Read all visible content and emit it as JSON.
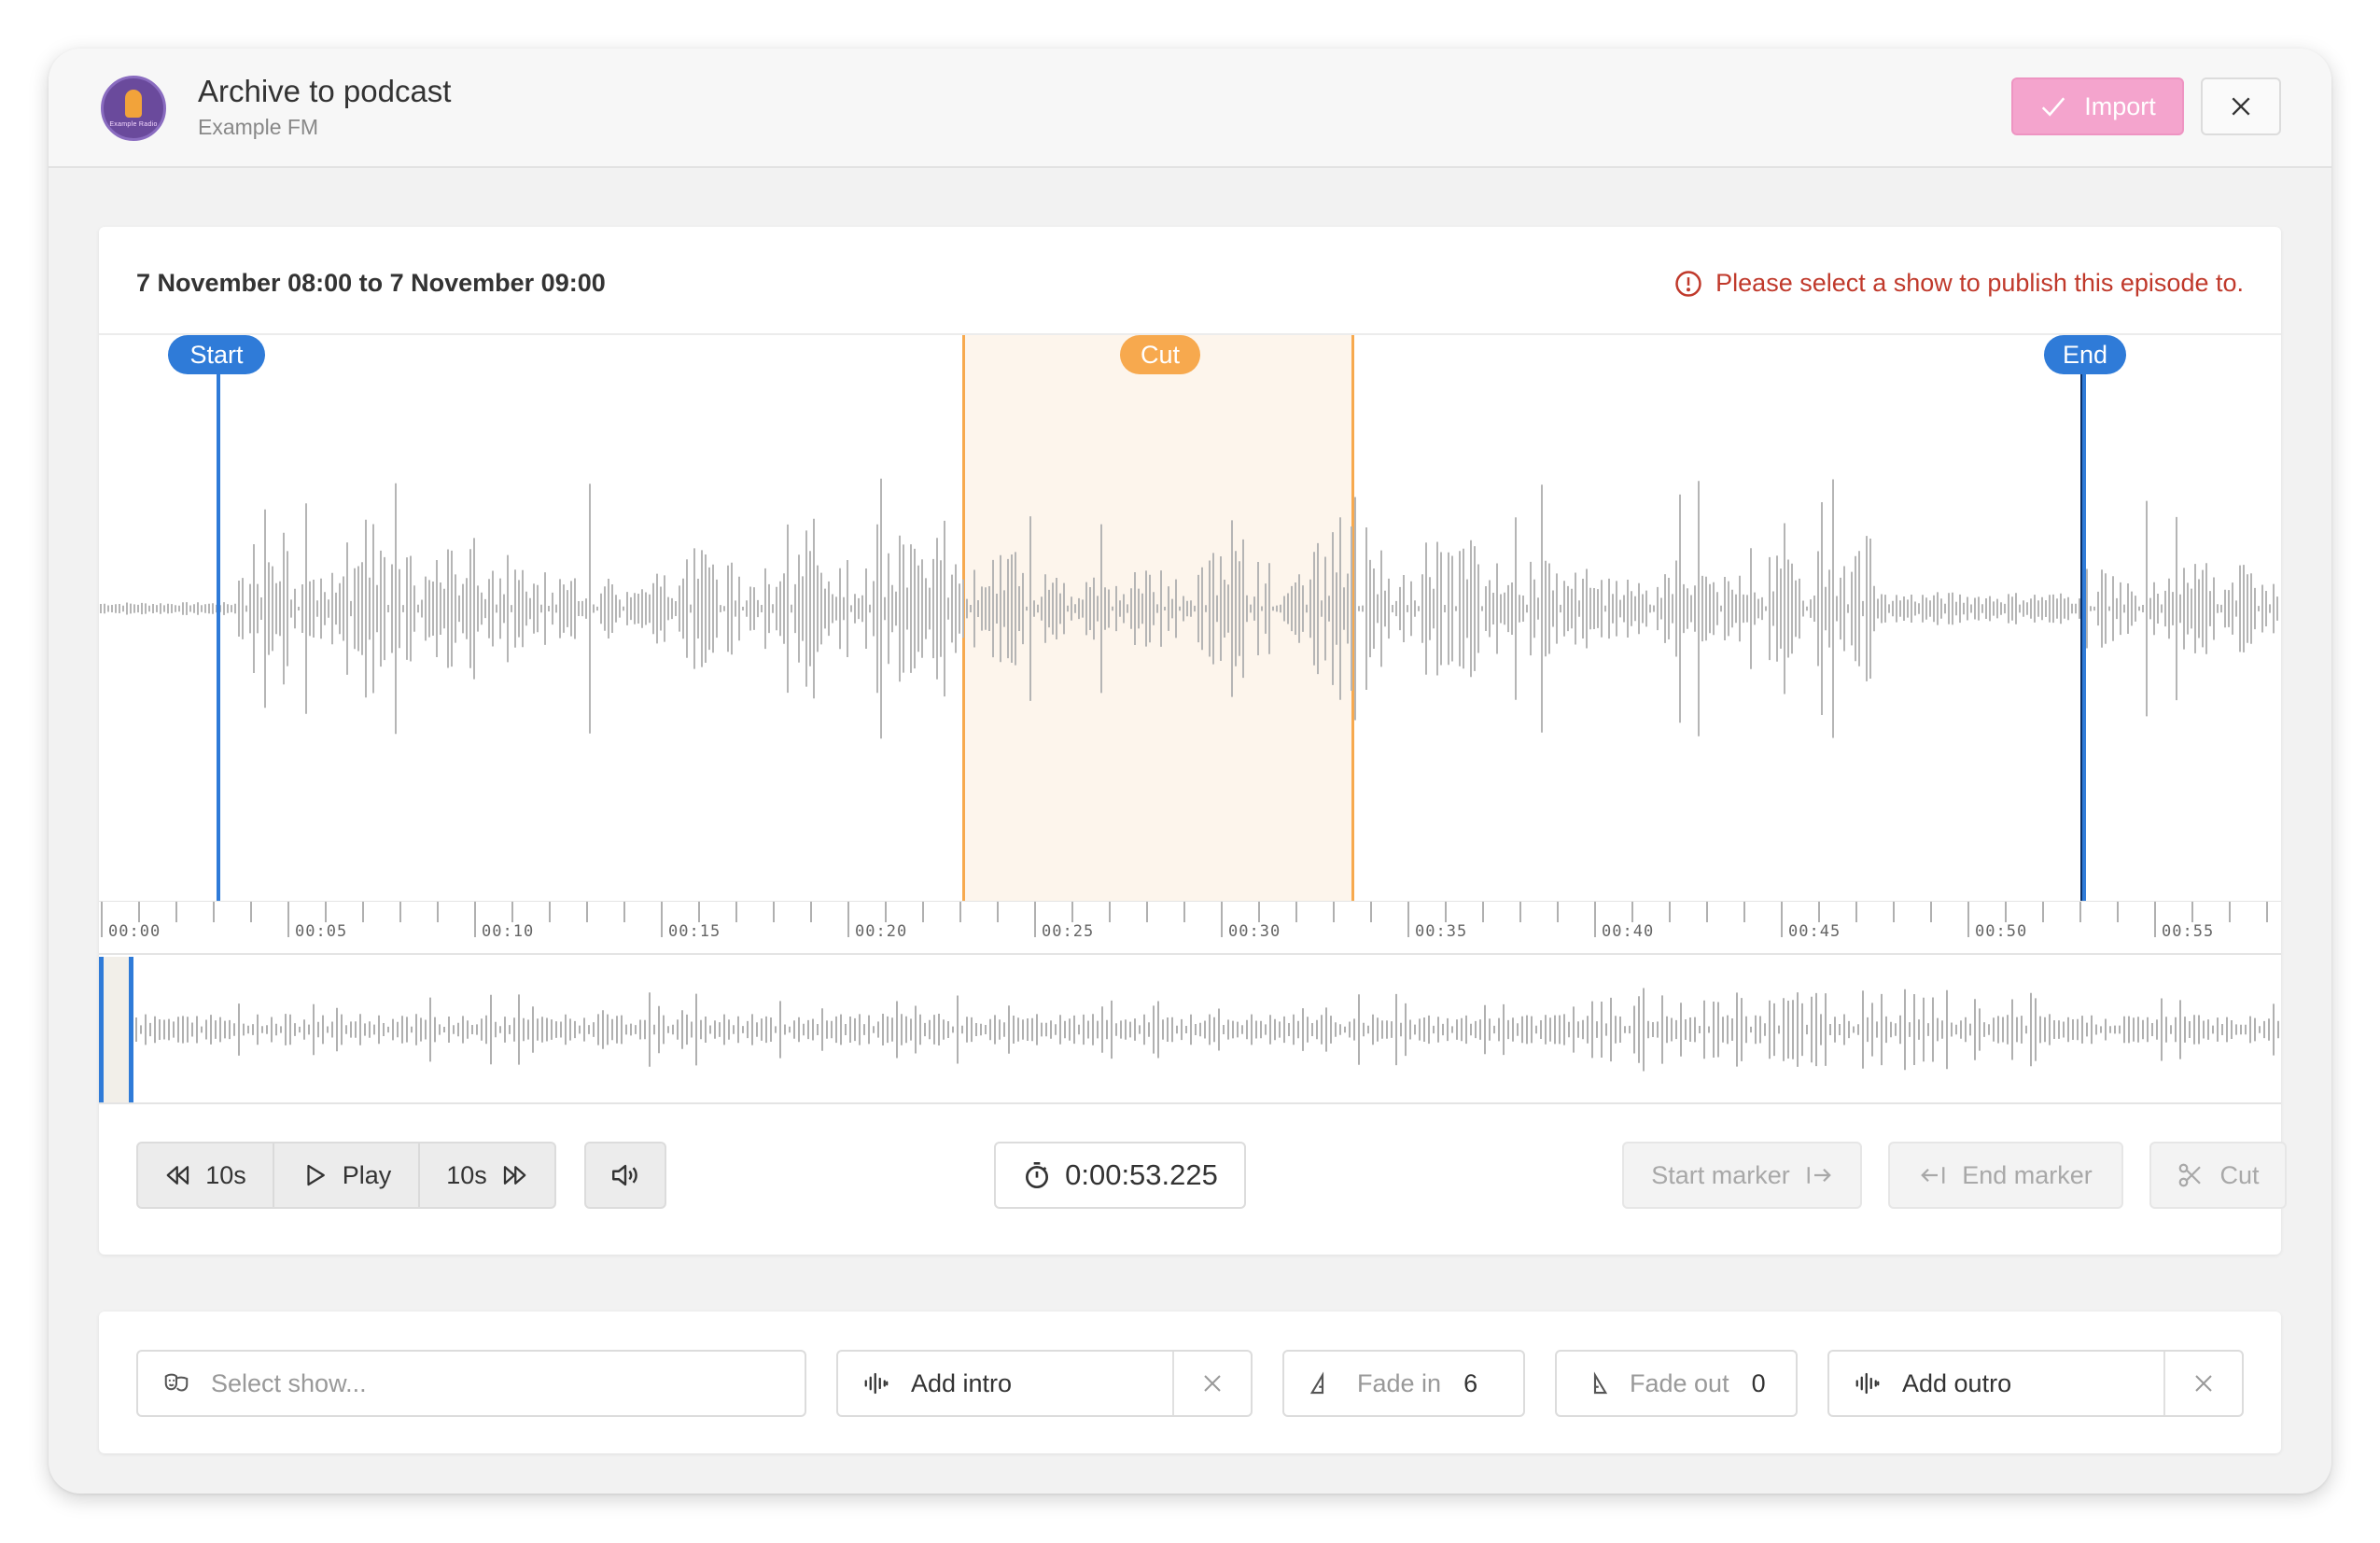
{
  "header": {
    "title": "Archive to podcast",
    "subtitle": "Example FM",
    "logo_text": "Example Radio",
    "import_label": "Import"
  },
  "editor": {
    "range_text": "7 November 08:00 to 7 November 09:00",
    "warning": "Please select a show to publish this episode to.",
    "markers": {
      "start": "Start",
      "cut": "Cut",
      "end": "End"
    },
    "timeline_ticks": [
      "00:00",
      "00:05",
      "00:10",
      "00:15",
      "00:20",
      "00:25",
      "00:30",
      "00:35",
      "00:40",
      "00:45",
      "00:50",
      "00:55"
    ]
  },
  "controls": {
    "rewind_label": "10s",
    "play_label": "Play",
    "forward_label": "10s",
    "timer": "0:00:53.225",
    "start_marker_label": "Start marker",
    "end_marker_label": "End marker",
    "cut_label": "Cut"
  },
  "options": {
    "show_placeholder": "Select show...",
    "intro_label": "Add intro",
    "fade_in_label": "Fade in",
    "fade_in_value": "6",
    "fade_out_label": "Fade out",
    "fade_out_value": "0",
    "outro_label": "Add outro"
  },
  "colors": {
    "accent_blue": "#2f7bd8",
    "cut_orange": "#f7a94e",
    "import_pink": "#f4a4cd",
    "warning_red": "#c0392b",
    "waveform_gray": "#b5b5b5"
  }
}
